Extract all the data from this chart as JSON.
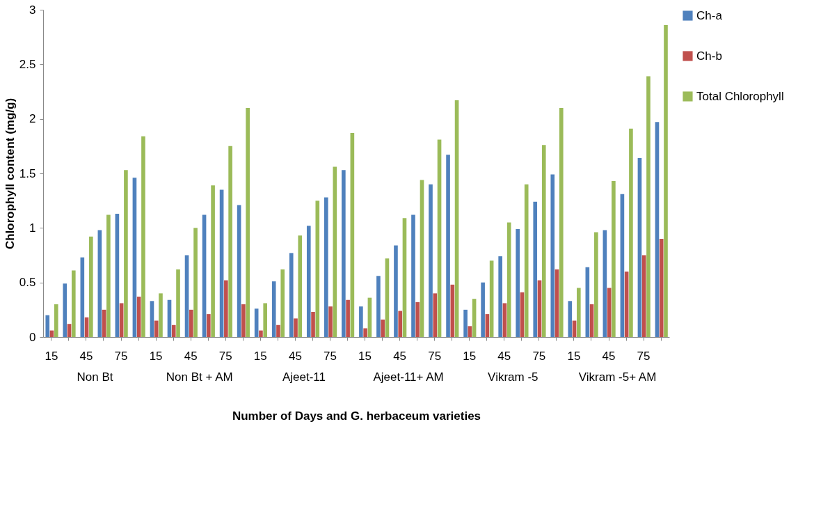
{
  "chart_data": {
    "type": "bar",
    "xlabel": "Number of Days and G. herbaceum varieties",
    "ylabel": "Chlorophyll content (mg/g)",
    "categories": [
      "15",
      null,
      "45",
      null,
      "75",
      null,
      "15",
      null,
      "45",
      null,
      "75",
      null,
      "15",
      null,
      "45",
      null,
      "75",
      null,
      "15",
      null,
      "45",
      null,
      "75",
      null,
      "15",
      null,
      "45",
      null,
      "75",
      null,
      "15",
      null,
      "45",
      null,
      "75",
      null
    ],
    "annotations": [
      "Non Bt",
      "Non Bt + AM",
      "Ajeet-11",
      "Ajeet-11+ AM",
      "Vikram -5",
      "Vikram -5+ AM"
    ],
    "series": [
      {
        "name": "Ch-a",
        "color": "#4f81bd",
        "values": [
          0.2,
          0.49,
          0.73,
          0.98,
          1.13,
          1.46,
          0.33,
          0.34,
          0.75,
          1.12,
          1.35,
          1.21,
          0.26,
          0.51,
          0.77,
          1.02,
          1.28,
          1.53,
          0.28,
          0.56,
          0.84,
          1.12,
          1.4,
          1.67,
          0.25,
          0.5,
          0.74,
          0.99,
          1.24,
          1.49,
          0.33,
          0.64,
          0.98,
          1.31,
          1.64,
          1.97
        ]
      },
      {
        "name": "Ch-b",
        "color": "#c0504d",
        "values": [
          0.06,
          0.12,
          0.18,
          0.25,
          0.31,
          0.37,
          0.15,
          0.11,
          0.25,
          0.21,
          0.52,
          0.3,
          0.06,
          0.11,
          0.17,
          0.23,
          0.28,
          0.34,
          0.08,
          0.16,
          0.24,
          0.32,
          0.4,
          0.48,
          0.1,
          0.21,
          0.31,
          0.41,
          0.52,
          0.62,
          0.15,
          0.3,
          0.45,
          0.6,
          0.75,
          0.9
        ]
      },
      {
        "name": "Total Chlorophyll",
        "color": "#9bbb59",
        "values": [
          0.3,
          0.61,
          0.92,
          1.12,
          1.53,
          1.84,
          0.4,
          0.62,
          1.0,
          1.39,
          1.75,
          2.1,
          0.31,
          0.62,
          0.93,
          1.25,
          1.56,
          1.87,
          0.36,
          0.72,
          1.09,
          1.44,
          1.81,
          2.17,
          0.35,
          0.7,
          1.05,
          1.4,
          1.76,
          2.1,
          0.45,
          0.96,
          1.43,
          1.91,
          2.39,
          2.86
        ]
      }
    ],
    "ylim": [
      0,
      3
    ],
    "yticks": [
      0,
      0.5,
      1,
      1.5,
      2,
      2.5,
      3
    ],
    "grid": false,
    "legend": "right"
  }
}
